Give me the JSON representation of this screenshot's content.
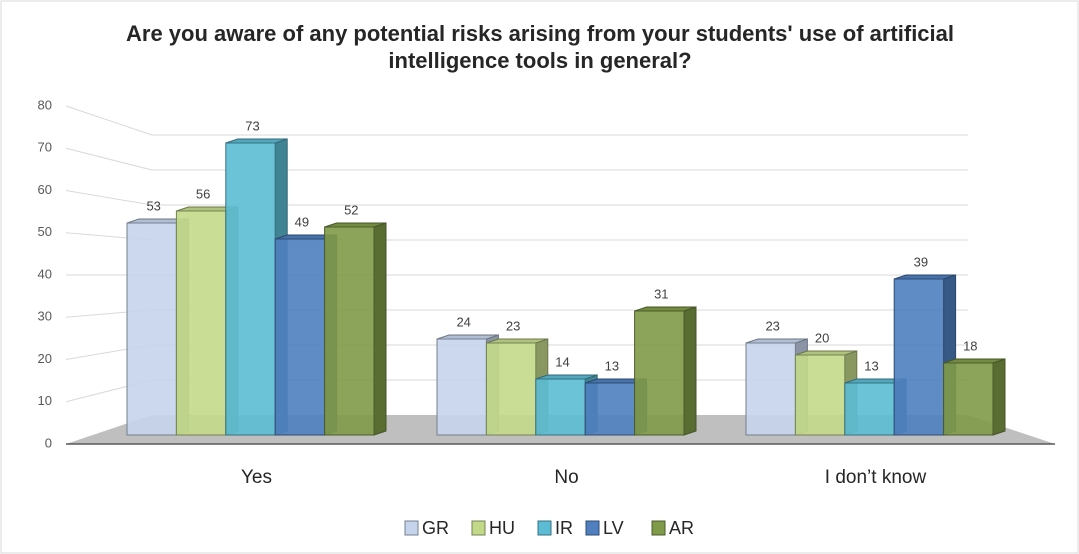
{
  "chart_data": {
    "type": "bar3d",
    "title": "Are you aware of any potential risks arising from your students' use of artificial intelligence tools in general?",
    "categories": [
      "Yes",
      "No",
      "I don’t know"
    ],
    "series": [
      {
        "name": "GR",
        "color": "#c5d4ec",
        "values": [
          53,
          24,
          23
        ]
      },
      {
        "name": "HU",
        "color": "#c3d98a",
        "values": [
          56,
          23,
          20
        ]
      },
      {
        "name": "IR",
        "color": "#5bbcd4",
        "values": [
          73,
          14,
          13
        ]
      },
      {
        "name": "LV",
        "color": "#4f7fbf",
        "values": [
          49,
          13,
          39
        ]
      },
      {
        "name": "AR",
        "color": "#7f9a48",
        "values": [
          52,
          31,
          18
        ]
      }
    ],
    "ylim": [
      0,
      80
    ],
    "yticks": [
      0,
      10,
      20,
      30,
      40,
      50,
      60,
      70,
      80
    ],
    "grid": true,
    "legend": "bottom"
  }
}
